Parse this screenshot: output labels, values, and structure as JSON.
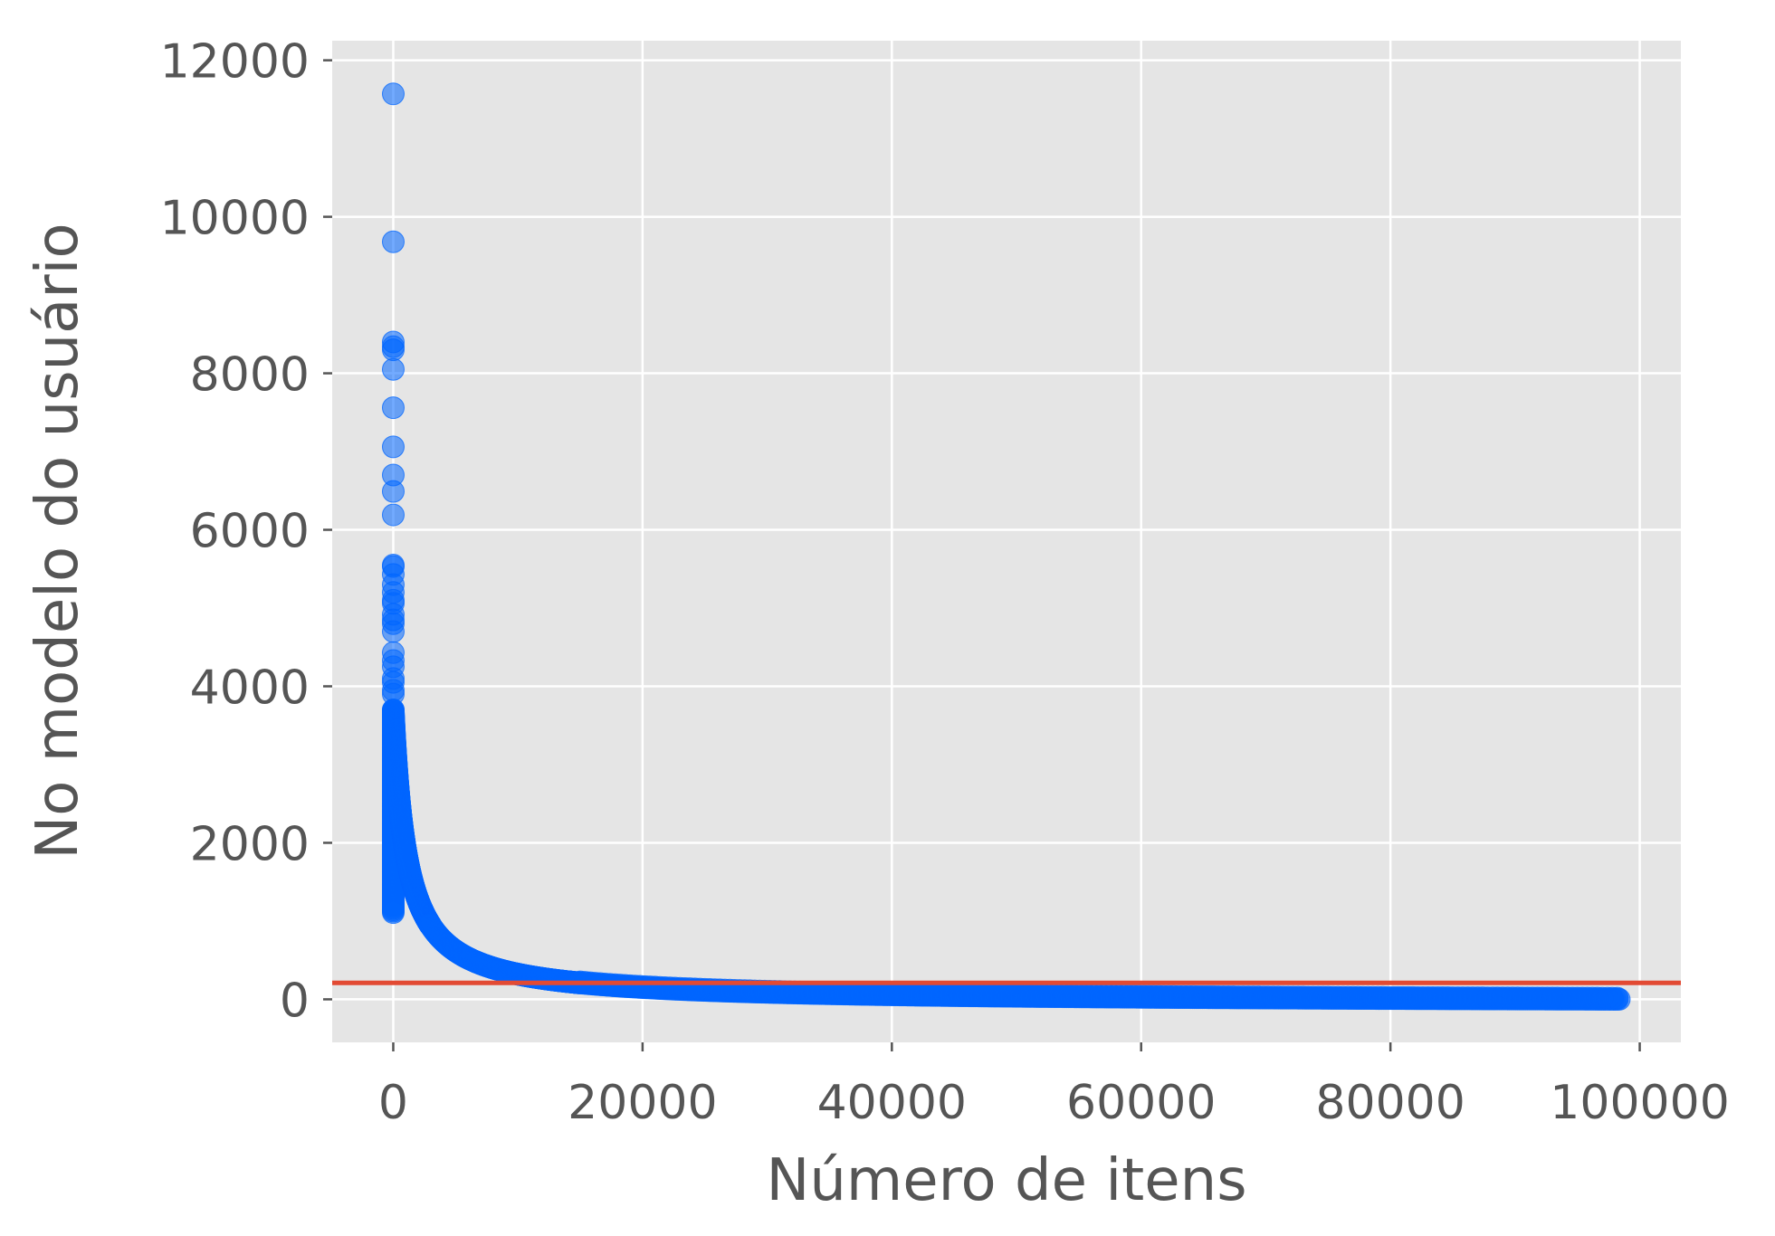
{
  "chart_data": {
    "type": "scatter",
    "title": "",
    "xlabel": "Número de itens",
    "ylabel": "No modelo do usuário",
    "xlim": [
      -4900,
      103300
    ],
    "ylim": [
      -550,
      12250
    ],
    "xticks": [
      0,
      20000,
      40000,
      60000,
      80000,
      100000
    ],
    "yticks": [
      0,
      2000,
      4000,
      6000,
      8000,
      10000,
      12000
    ],
    "grid": true,
    "background_color": "#e5e5e5",
    "grid_color": "#ffffff",
    "point_color": "#0066ff",
    "point_alpha": 0.55,
    "outlier_points": [
      [
        0,
        11570
      ],
      [
        0,
        9680
      ],
      [
        0,
        8400
      ],
      [
        0,
        8340
      ],
      [
        0,
        8300
      ],
      [
        0,
        8050
      ],
      [
        0,
        7560
      ],
      [
        0,
        7060
      ],
      [
        0,
        6700
      ],
      [
        0,
        6490
      ],
      [
        0,
        6190
      ],
      [
        0,
        5550
      ],
      [
        0,
        5530
      ],
      [
        0,
        5430
      ],
      [
        0,
        5300
      ],
      [
        0,
        5200
      ],
      [
        0,
        5100
      ],
      [
        0,
        5060
      ],
      [
        0,
        4920
      ],
      [
        0,
        4850
      ],
      [
        0,
        4800
      ],
      [
        0,
        4700
      ],
      [
        0,
        4430
      ],
      [
        0,
        4330
      ],
      [
        0,
        4250
      ],
      [
        0,
        4100
      ],
      [
        0,
        4050
      ],
      [
        0,
        3950
      ],
      [
        0,
        3900
      ]
    ],
    "decay_curve": {
      "x_range": [
        0,
        98500
      ],
      "y_start": 3700,
      "description": "dense point cloud: y decays from about 3700 near x=0 to about 0 at x=98500"
    },
    "reference_line": {
      "y": 210,
      "color": "#e24a33"
    }
  }
}
